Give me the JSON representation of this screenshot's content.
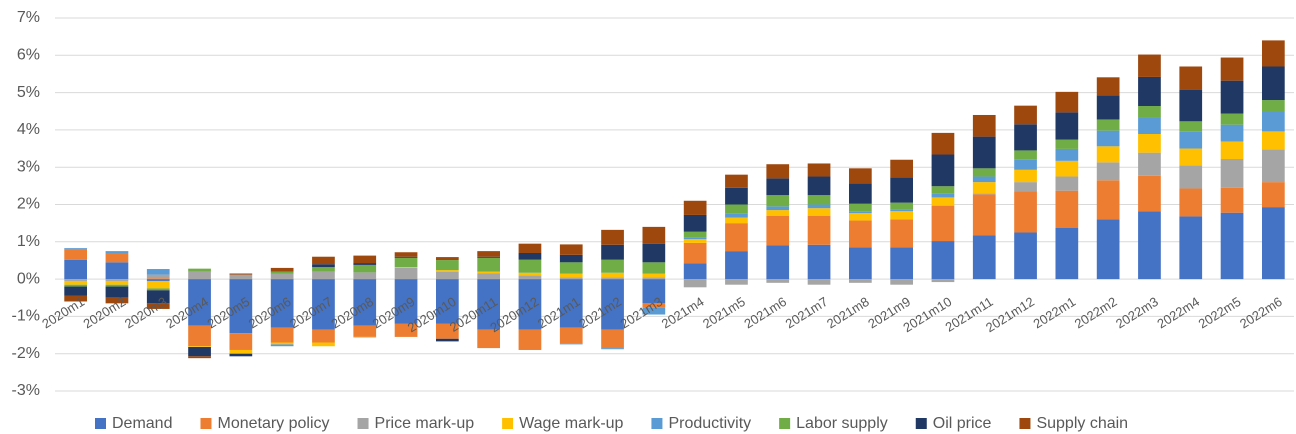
{
  "chart_data": {
    "type": "stacked_bar",
    "categories": [
      "2020m1",
      "2020m2",
      "2020m3",
      "2020m4",
      "2020m5",
      "2020m6",
      "2020m7",
      "2020m8",
      "2020m9",
      "2020m10",
      "2020m11",
      "2020m12",
      "2021m1",
      "2021m2",
      "2021m3",
      "2021m4",
      "2021m5",
      "2021m6",
      "2021m7",
      "2021m8",
      "2021m9",
      "2021m10",
      "2021m11",
      "2021m12",
      "2022m1",
      "2022m2",
      "2022m3",
      "2022m4",
      "2022m5",
      "2022m6"
    ],
    "series": [
      {
        "name": "Demand",
        "color": "#4472c4",
        "values": [
          0.52,
          0.45,
          -0.05,
          -1.25,
          -1.45,
          -1.3,
          -1.35,
          -1.25,
          -1.2,
          -1.2,
          -1.35,
          -1.35,
          -1.3,
          -1.35,
          -0.65,
          0.42,
          0.75,
          0.9,
          0.92,
          0.85,
          0.85,
          1.02,
          1.17,
          1.25,
          1.37,
          1.6,
          1.82,
          1.68,
          1.78,
          1.93
        ]
      },
      {
        "name": "Monetary policy",
        "color": "#ed7d31",
        "values": [
          0.27,
          0.25,
          0.02,
          -0.55,
          -0.45,
          -0.4,
          -0.35,
          -0.3,
          -0.35,
          -0.4,
          -0.5,
          -0.55,
          -0.42,
          -0.5,
          -0.12,
          0.55,
          0.75,
          0.8,
          0.78,
          0.72,
          0.75,
          0.95,
          1.1,
          1.1,
          1.0,
          1.05,
          0.95,
          0.75,
          0.67,
          0.67
        ]
      },
      {
        "name": "Price mark-up",
        "color": "#a5a5a5",
        "values": [
          -0.05,
          -0.05,
          0.1,
          0.2,
          0.12,
          0.15,
          0.2,
          0.18,
          0.3,
          0.2,
          0.15,
          0.1,
          0.05,
          0.05,
          0.05,
          -0.22,
          -0.15,
          -0.1,
          -0.15,
          -0.1,
          -0.15,
          -0.08,
          0.03,
          0.25,
          0.38,
          0.48,
          0.62,
          0.62,
          0.77,
          0.88
        ]
      },
      {
        "name": "Wage mark-up",
        "color": "#ffc000",
        "values": [
          -0.1,
          -0.1,
          -0.2,
          -0.02,
          -0.1,
          -0.05,
          -0.1,
          -0.02,
          0.02,
          0.04,
          0.05,
          0.07,
          0.1,
          0.12,
          0.1,
          0.1,
          0.15,
          0.15,
          0.2,
          0.2,
          0.22,
          0.22,
          0.3,
          0.33,
          0.42,
          0.43,
          0.5,
          0.45,
          0.47,
          0.48
        ]
      },
      {
        "name": "Productivity",
        "color": "#5b9bd5",
        "values": [
          0.04,
          0.05,
          0.15,
          0,
          0,
          -0.05,
          0,
          0,
          0,
          0,
          0,
          0,
          -0.03,
          -0.03,
          -0.18,
          0.05,
          0.1,
          0.1,
          0.1,
          0.05,
          0.05,
          0.1,
          0.15,
          0.27,
          0.32,
          0.42,
          0.43,
          0.45,
          0.45,
          0.52
        ]
      },
      {
        "name": "Labor supply",
        "color": "#70ad47",
        "values": [
          -0.05,
          -0.05,
          -0.05,
          0.08,
          0,
          0.05,
          0.12,
          0.2,
          0.25,
          0.27,
          0.37,
          0.35,
          0.3,
          0.35,
          0.3,
          0.15,
          0.25,
          0.3,
          0.25,
          0.2,
          0.18,
          0.2,
          0.22,
          0.25,
          0.25,
          0.3,
          0.32,
          0.28,
          0.3,
          0.32
        ]
      },
      {
        "name": "Oil price",
        "color": "#203864",
        "values": [
          -0.25,
          -0.3,
          -0.35,
          -0.25,
          -0.07,
          0,
          0.08,
          0.05,
          0.03,
          -0.07,
          0.03,
          0.18,
          0.2,
          0.4,
          0.5,
          0.45,
          0.45,
          0.45,
          0.5,
          0.55,
          0.68,
          0.85,
          0.85,
          0.7,
          0.73,
          0.65,
          0.78,
          0.85,
          0.88,
          0.9
        ]
      },
      {
        "name": "Supply chain",
        "color": "#9e480e",
        "values": [
          -0.15,
          -0.15,
          -0.15,
          -0.05,
          0.03,
          0.1,
          0.2,
          0.2,
          0.12,
          0.08,
          0.15,
          0.25,
          0.28,
          0.4,
          0.45,
          0.38,
          0.35,
          0.38,
          0.35,
          0.4,
          0.47,
          0.58,
          0.58,
          0.5,
          0.55,
          0.48,
          0.6,
          0.62,
          0.62,
          0.7
        ]
      }
    ],
    "ylim": [
      -3,
      7
    ],
    "yticks": [
      {
        "value": -3,
        "label": "-3%"
      },
      {
        "value": -2,
        "label": "-2%"
      },
      {
        "value": -1,
        "label": "-1%"
      },
      {
        "value": 0,
        "label": "0%"
      },
      {
        "value": 1,
        "label": "1%"
      },
      {
        "value": 2,
        "label": "2%"
      },
      {
        "value": 3,
        "label": "3%"
      },
      {
        "value": 4,
        "label": "4%"
      },
      {
        "value": 5,
        "label": "5%"
      },
      {
        "value": 6,
        "label": "6%"
      },
      {
        "value": 7,
        "label": "7%"
      }
    ],
    "grid": true
  }
}
